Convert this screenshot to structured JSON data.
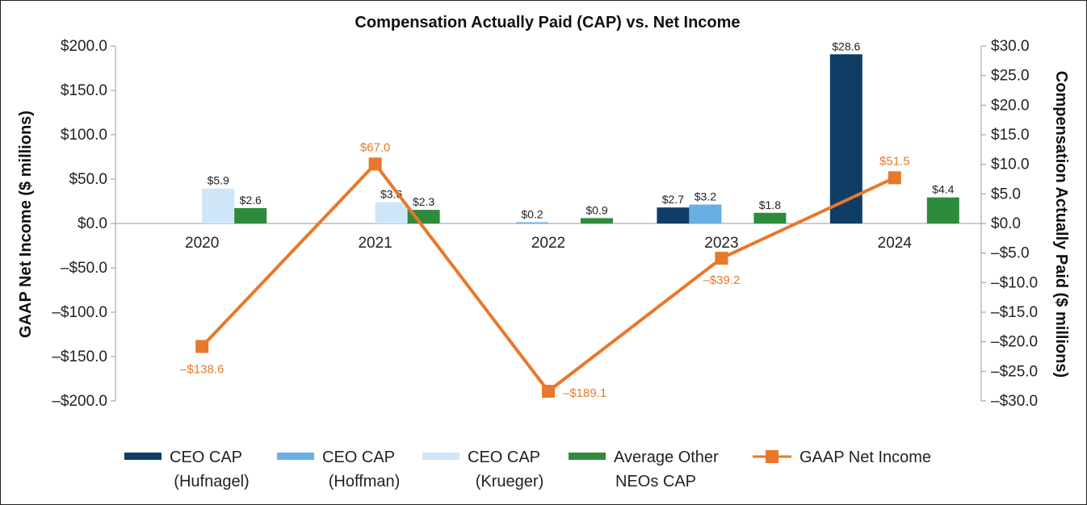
{
  "chart_data": {
    "type": "bar",
    "title": "Compensation Actually Paid (CAP) vs. Net Income",
    "categories": [
      "2020",
      "2021",
      "2022",
      "2023",
      "2024"
    ],
    "y_left": {
      "label": "GAAP Net Income ($ millions)",
      "range": [
        -200,
        200
      ],
      "ticks": [
        "$200.0",
        "$150.0",
        "$100.0",
        "$50.0",
        "$0.0",
        "–$50.0",
        "–$100.0",
        "–$150.0",
        "–$200.0"
      ]
    },
    "y_right": {
      "label": "Compensation Actually Paid ($ millions)",
      "range": [
        -30,
        30
      ],
      "ticks": [
        "$30.0",
        "$25.0",
        "$20.0",
        "$15.0",
        "$10.0",
        "$5.0",
        "$0.0",
        "–$5.0",
        "–$10.0",
        "–$15.0",
        "–$20.0",
        "–$25.0",
        "–$30.0"
      ]
    },
    "series": [
      {
        "name": "CEO CAP (Hufnagel)",
        "type": "bar",
        "axis": "right",
        "color": "#0e3d66",
        "values": [
          null,
          null,
          null,
          2.7,
          28.6
        ],
        "labels": [
          null,
          null,
          null,
          "$2.7",
          "$28.6"
        ]
      },
      {
        "name": "CEO CAP (Hoffman)",
        "type": "bar",
        "axis": "right",
        "color": "#6aafe2",
        "values": [
          null,
          null,
          0.2,
          3.2,
          null
        ],
        "labels": [
          null,
          null,
          "$0.2",
          "$3.2",
          null
        ]
      },
      {
        "name": "CEO CAP (Krueger)",
        "type": "bar",
        "axis": "right",
        "color": "#cfe6f8",
        "values": [
          5.9,
          3.6,
          null,
          null,
          null
        ],
        "labels": [
          "$5.9",
          "$3.6",
          null,
          null,
          null
        ]
      },
      {
        "name": "Average Other NEOs CAP",
        "type": "bar",
        "axis": "right",
        "color": "#2e8b3c",
        "values": [
          2.6,
          2.3,
          0.9,
          1.8,
          4.4
        ],
        "labels": [
          "$2.6",
          "$2.3",
          "$0.9",
          "$1.8",
          "$4.4"
        ]
      },
      {
        "name": "GAAP Net Income",
        "type": "line",
        "axis": "left",
        "color": "#e8782a",
        "values": [
          -138.6,
          67.0,
          -189.1,
          -39.2,
          51.5
        ],
        "labels": [
          "–$138.6",
          "$67.0",
          "–$189.1",
          "–$39.2",
          "$51.5"
        ]
      }
    ],
    "legend": {
      "placement": "bottom",
      "items": [
        {
          "line1": "CEO CAP",
          "line2": "(Hufnagel)"
        },
        {
          "line1": "CEO CAP",
          "line2": "(Hoffman)"
        },
        {
          "line1": "CEO CAP",
          "line2": "(Krueger)"
        },
        {
          "line1": "Average Other",
          "line2": "NEOs CAP"
        },
        {
          "line1": "GAAP Net Income",
          "line2": ""
        }
      ]
    },
    "grid": false
  }
}
